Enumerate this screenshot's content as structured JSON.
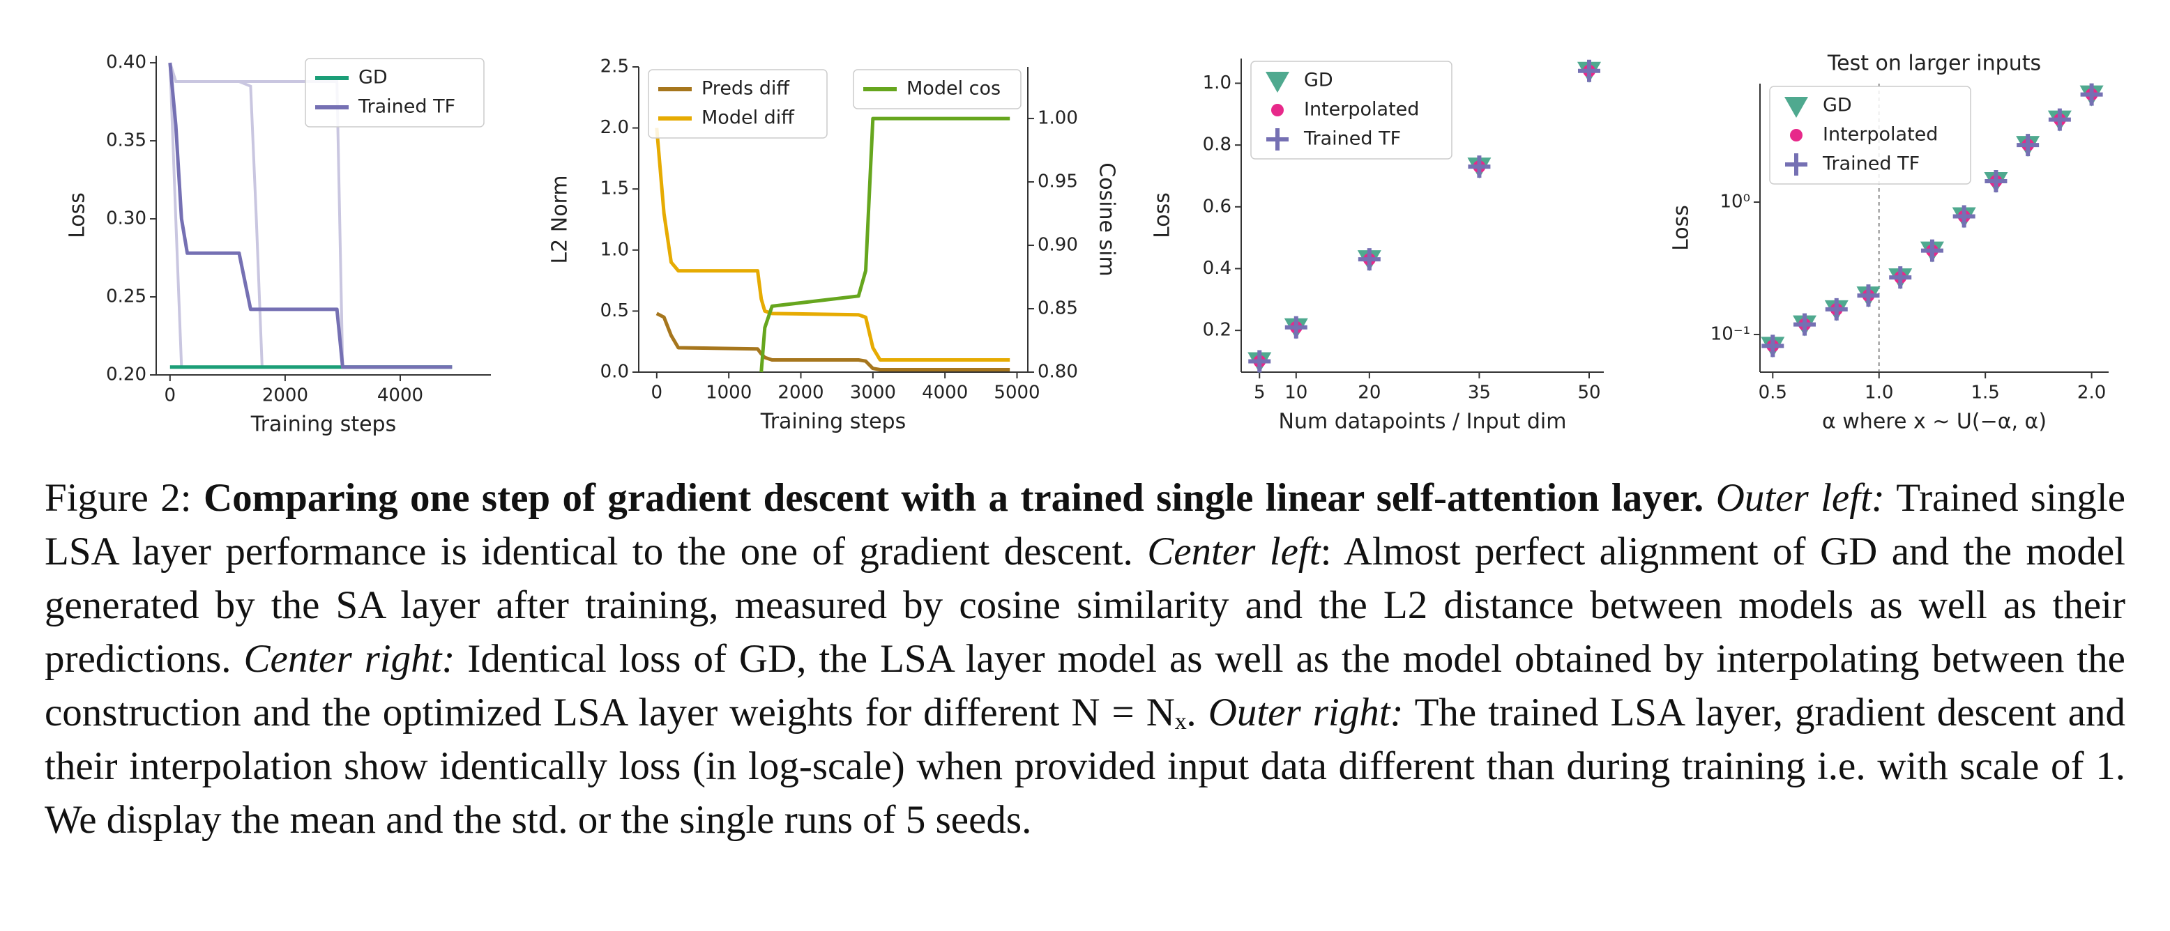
{
  "chart_data": [
    {
      "type": "line",
      "xlabel": "Training steps",
      "ylabel": "Loss",
      "x": [
        0,
        100,
        200,
        300,
        1200,
        1400,
        1500,
        1600,
        2900,
        3000,
        3100,
        4900
      ],
      "series": [
        {
          "name": "GD",
          "color": "#1b9e77",
          "values": [
            0.205,
            0.205,
            0.205,
            0.205,
            0.205,
            0.205,
            0.205,
            0.205,
            0.205,
            0.205,
            0.205,
            0.205
          ]
        },
        {
          "name": "Trained TF",
          "color": "#7570b3",
          "values": [
            0.4,
            0.36,
            0.3,
            0.278,
            0.278,
            0.242,
            0.242,
            0.242,
            0.242,
            0.205,
            0.205,
            0.205
          ]
        }
      ],
      "runs": [
        {
          "color": "#c9c6e0",
          "values": [
            0.4,
            0.3,
            0.205,
            0.205,
            0.205,
            0.205,
            0.205,
            0.205,
            0.205,
            0.205,
            0.205,
            0.205
          ]
        },
        {
          "color": "#c9c6e0",
          "values": [
            0.4,
            0.388,
            0.388,
            0.388,
            0.388,
            0.385,
            0.3,
            0.205,
            0.205,
            0.205,
            0.205,
            0.205
          ]
        },
        {
          "color": "#c9c6e0",
          "values": [
            0.4,
            0.388,
            0.388,
            0.388,
            0.388,
            0.388,
            0.388,
            0.388,
            0.388,
            0.205,
            0.205,
            0.205
          ]
        }
      ],
      "xlim": [
        -240,
        5575
      ],
      "xticks": [
        0,
        2000,
        4000
      ],
      "ylim": [
        0.2,
        0.4045
      ],
      "yticks": [
        {
          "value": 0.2,
          "label": "0.20"
        },
        0.25,
        {
          "value": 0.3,
          "label": "0.30"
        },
        0.35,
        {
          "value": 0.4,
          "label": "0.40"
        }
      ],
      "legend": "upper right"
    },
    {
      "type": "line",
      "xlabel": "Training steps",
      "ylabel": "L2 Norm",
      "y2label": "Cosine sim",
      "x": [
        0,
        100,
        200,
        300,
        1400,
        1450,
        1500,
        1600,
        2800,
        2900,
        3000,
        3100,
        4900
      ],
      "series": [
        {
          "name": "Preds diff",
          "color": "#a6761d",
          "values": [
            0.48,
            0.45,
            0.3,
            0.2,
            0.19,
            0.15,
            0.12,
            0.1,
            0.1,
            0.09,
            0.03,
            0.02,
            0.02
          ]
        },
        {
          "name": "Model diff",
          "color": "#e6ab02",
          "values": [
            2.0,
            1.3,
            0.9,
            0.83,
            0.83,
            0.6,
            0.5,
            0.48,
            0.47,
            0.45,
            0.2,
            0.1,
            0.1
          ]
        },
        {
          "name": "Model cos",
          "color": "#66a61e",
          "axis": "y2",
          "values": [
            null,
            null,
            null,
            null,
            null,
            0.8,
            0.835,
            0.852,
            0.86,
            0.88,
            1.0,
            1.0,
            1.0
          ]
        }
      ],
      "xlim": [
        -250,
        5150
      ],
      "xticks": [
        0,
        1000,
        2000,
        3000,
        4000,
        5000
      ],
      "ylim": [
        0,
        2.5
      ],
      "yticks": [
        {
          "value": 0,
          "label": "0.0"
        },
        0.5,
        {
          "value": 1,
          "label": "1.0"
        },
        1.5,
        {
          "value": 2,
          "label": "2.0"
        },
        2.5
      ],
      "y2lim": [
        0.8,
        1.0407
      ],
      "y2ticks": [
        {
          "value": 0.8,
          "label": "0.80"
        },
        0.85,
        {
          "value": 0.9,
          "label": "0.90"
        },
        0.95,
        {
          "value": 1,
          "label": "1.00"
        }
      ],
      "legend": "upper left",
      "legend2": "upper right"
    },
    {
      "type": "scatter",
      "xlabel": "Num datapoints / Input dim",
      "ylabel": "Loss",
      "x": [
        5,
        10,
        20,
        35,
        50
      ],
      "series": [
        {
          "name": "GD",
          "color": "#4fa98f",
          "marker": "v",
          "values": [
            0.1,
            0.21,
            0.43,
            0.73,
            1.04
          ]
        },
        {
          "name": "Interpolated",
          "color": "#e7298a",
          "marker": "o",
          "values": [
            0.1,
            0.21,
            0.43,
            0.73,
            1.04
          ]
        },
        {
          "name": "Trained TF",
          "color": "#7570b3",
          "marker": "+",
          "values": [
            0.1,
            0.21,
            0.43,
            0.73,
            1.04
          ]
        }
      ],
      "xlim": [
        2.5,
        52
      ],
      "xticks": [
        5,
        10,
        20,
        35,
        50
      ],
      "ylim": [
        0.065,
        1.08
      ],
      "yticks": [
        0.2,
        0.4,
        0.6,
        0.8,
        {
          "value": 1,
          "label": "1.0"
        }
      ],
      "legend": "upper left"
    },
    {
      "type": "scatter",
      "title": "Test on larger inputs",
      "xlabel": "α   where x ∼ U(−α, α)",
      "ylabel": "Loss",
      "x": [
        0.5,
        0.65,
        0.8,
        0.95,
        1.1,
        1.25,
        1.4,
        1.55,
        1.7,
        1.85,
        2.0
      ],
      "series": [
        {
          "name": "GD",
          "color": "#4fa98f",
          "marker": "v",
          "values": [
            0.082,
            0.119,
            0.155,
            0.197,
            0.27,
            0.43,
            0.78,
            1.44,
            2.7,
            4.2,
            6.5
          ]
        },
        {
          "name": "Interpolated",
          "color": "#e7298a",
          "marker": "o",
          "values": [
            0.082,
            0.119,
            0.155,
            0.197,
            0.27,
            0.43,
            0.78,
            1.44,
            2.7,
            4.2,
            6.5
          ]
        },
        {
          "name": "Trained TF",
          "color": "#7570b3",
          "marker": "+",
          "values": [
            0.082,
            0.119,
            0.155,
            0.197,
            0.27,
            0.43,
            0.78,
            1.44,
            2.7,
            4.2,
            6.5
          ]
        }
      ],
      "xlim": [
        0.44,
        2.08
      ],
      "xticks": [
        0.5,
        {
          "value": 1,
          "label": "1.0"
        },
        1.5,
        {
          "value": 2,
          "label": "2.0"
        }
      ],
      "ylog": true,
      "ylim": [
        0.052,
        7.85
      ],
      "yticks": [
        {
          "value": 0.1,
          "label": "10⁻¹"
        },
        {
          "value": 1,
          "label": "10⁰"
        }
      ],
      "vline": 1.0,
      "legend": "upper left"
    }
  ],
  "caption": {
    "label": "Figure 2:",
    "title": "Comparing one step of gradient descent with a trained single linear self-attention layer.",
    "segments": [
      {
        "italic": "Outer left:",
        "text": " Trained single LSA layer performance is identical to the one of gradient descent. "
      },
      {
        "italic": "Center left",
        "text": ": Almost perfect alignment of GD and the model generated by the SA layer after training, measured by cosine similarity and the L2 distance between models as well as their predictions. "
      },
      {
        "italic": "Center right:",
        "text": " Identical loss of GD, the LSA layer model as well as the model obtained by interpolating between the construction and the optimized LSA layer weights for different N = Nₓ. "
      },
      {
        "italic": "Outer right:",
        "text": " The trained LSA layer, gradient descent and their interpolation show identically loss (in log-scale) when provided input data different than during training i.e. with scale of 1. We display the mean and the std. or the single runs of 5 seeds."
      }
    ]
  }
}
